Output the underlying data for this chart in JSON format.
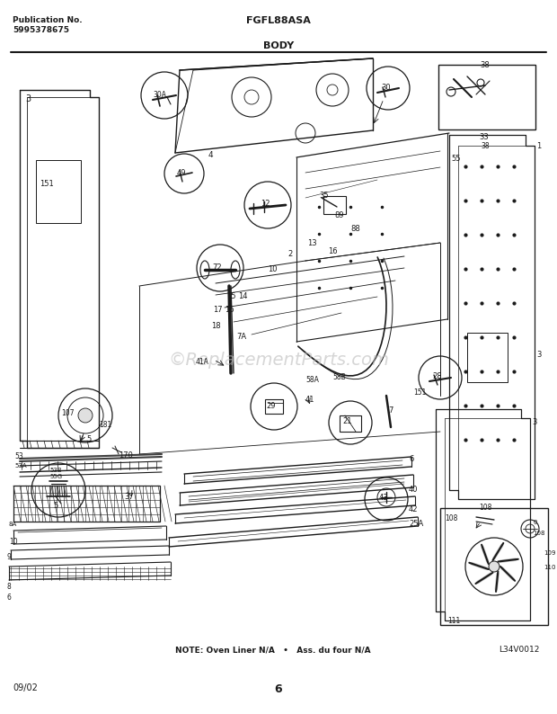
{
  "pub_no_label": "Publication No.",
  "pub_no": "5995378675",
  "model": "FGFL88ASA",
  "section": "BODY",
  "note_text": "NOTE: Oven Liner N/A   •   Ass. du four N/A",
  "diagram_id": "L34V0012",
  "date": "09/02",
  "page": "6",
  "bg_color": "#ffffff",
  "text_color": "#1a1a1a",
  "line_color": "#1a1a1a",
  "watermark_text": "©ReplacementParts.com",
  "watermark_color": "#d0d0d0"
}
